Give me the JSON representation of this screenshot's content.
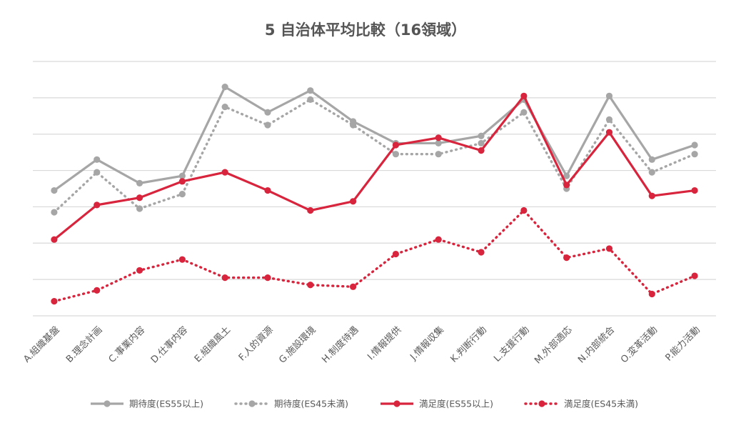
{
  "chart_data": {
    "type": "line",
    "title": "5 自治体平均比較（16領域）",
    "xlabel": "",
    "ylabel": "",
    "ylim": [
      0,
      7
    ],
    "y_ticks_labeled": false,
    "grid": "horizontal",
    "legend_position": "bottom",
    "categories": [
      "A.組織基盤",
      "B.理念計画",
      "C.事業内容",
      "D.仕事内容",
      "E.組織風土",
      "F.人的資源",
      "G.施設環境",
      "H.制度待遇",
      "I.情報提供",
      "J.情報収集",
      "K.判断行動",
      "L.支援行動",
      "M.外部適応",
      "N.内部統合",
      "O.変革活動",
      "P.能力活動"
    ],
    "series": [
      {
        "name": "期待度(ES55以上)",
        "color": "#a6a6a6",
        "style": "solid",
        "values": [
          3.45,
          4.3,
          3.65,
          3.85,
          6.3,
          5.6,
          6.2,
          5.35,
          4.75,
          4.75,
          4.95,
          5.95,
          3.85,
          6.05,
          4.3,
          4.7
        ]
      },
      {
        "name": "期待度(ES45未満)",
        "color": "#a6a6a6",
        "style": "dotted",
        "values": [
          2.85,
          3.95,
          2.95,
          3.35,
          5.75,
          5.25,
          5.95,
          5.25,
          4.45,
          4.45,
          4.75,
          5.6,
          3.5,
          5.4,
          3.95,
          4.45
        ]
      },
      {
        "name": "満足度(ES55以上)",
        "color": "#d8243c",
        "style": "solid",
        "values": [
          2.1,
          3.05,
          3.25,
          3.7,
          3.95,
          3.45,
          2.9,
          3.15,
          4.7,
          4.9,
          4.55,
          6.05,
          3.6,
          5.05,
          3.3,
          3.45
        ]
      },
      {
        "name": "満足度(ES45未満)",
        "color": "#d8243c",
        "style": "dotted",
        "values": [
          0.4,
          0.7,
          1.25,
          1.55,
          1.05,
          1.05,
          0.85,
          0.8,
          1.7,
          2.1,
          1.75,
          2.9,
          1.6,
          1.85,
          0.6,
          1.1
        ]
      }
    ]
  }
}
